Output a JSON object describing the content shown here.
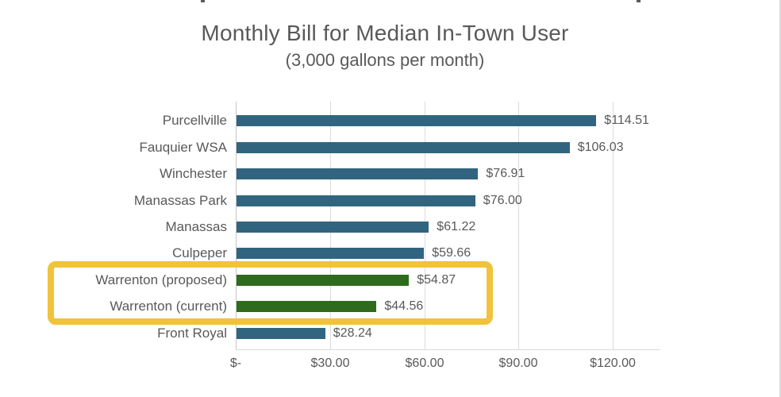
{
  "page": {
    "background": "#ffffff",
    "right_edge_line_color": "#dcdcdc"
  },
  "chart_data": {
    "type": "bar",
    "orientation": "horizontal",
    "title": "Monthly Bill for Median In-Town User",
    "subtitle": "(3,000 gallons per month)",
    "categories": [
      "Purcellville",
      "Fauquier WSA",
      "Winchester",
      "Manassas Park",
      "Manassas",
      "Culpeper",
      "Warrenton (proposed)",
      "Warrenton (current)",
      "Front Royal"
    ],
    "values": [
      114.51,
      106.03,
      76.91,
      76.0,
      61.22,
      59.66,
      54.87,
      44.56,
      28.24
    ],
    "value_labels": [
      "$114.51",
      "$106.03",
      "$76.91",
      "$76.00",
      "$61.22",
      "$59.66",
      "$54.87",
      "$44.56",
      "$28.24"
    ],
    "bar_colors": [
      "#31657F",
      "#31657F",
      "#31657F",
      "#31657F",
      "#31657F",
      "#31657F",
      "#2F6B1C",
      "#2F6B1C",
      "#31657F"
    ],
    "x_ticks": [
      {
        "label": "$-",
        "value": 0
      },
      {
        "label": "$30.00",
        "value": 30
      },
      {
        "label": "$60.00",
        "value": 60
      },
      {
        "label": "$90.00",
        "value": 90
      },
      {
        "label": "$120.00",
        "value": 120
      }
    ],
    "xlim": [
      0,
      135
    ],
    "grid": true,
    "legend": "none",
    "highlight_box": {
      "rows": [
        "Warrenton (proposed)",
        "Warrenton (current)"
      ],
      "border_color": "#F1C23C"
    },
    "colors": {
      "default_bar": "#31657F",
      "highlight_bar": "#2F6B1C",
      "text": "#595959",
      "gridline": "#D9D9D9"
    }
  }
}
